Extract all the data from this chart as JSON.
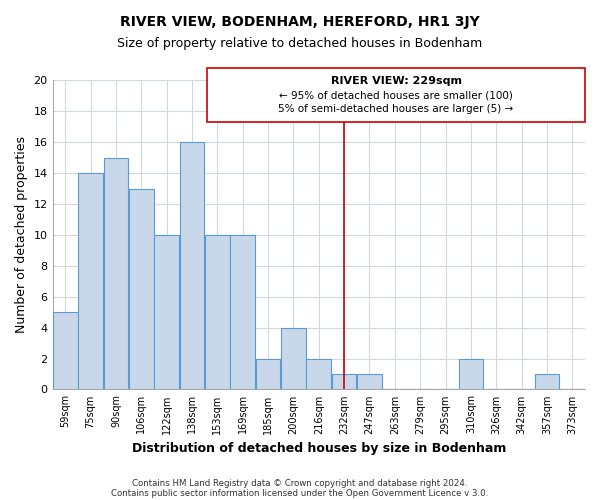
{
  "title": "RIVER VIEW, BODENHAM, HEREFORD, HR1 3JY",
  "subtitle": "Size of property relative to detached houses in Bodenham",
  "xlabel": "Distribution of detached houses by size in Bodenham",
  "ylabel": "Number of detached properties",
  "footer_lines": [
    "Contains HM Land Registry data © Crown copyright and database right 2024.",
    "Contains public sector information licensed under the Open Government Licence v 3.0."
  ],
  "bin_labels": [
    "59sqm",
    "75sqm",
    "90sqm",
    "106sqm",
    "122sqm",
    "138sqm",
    "153sqm",
    "169sqm",
    "185sqm",
    "200sqm",
    "216sqm",
    "232sqm",
    "247sqm",
    "263sqm",
    "279sqm",
    "295sqm",
    "310sqm",
    "326sqm",
    "342sqm",
    "357sqm",
    "373sqm"
  ],
  "bar_heights": [
    5,
    14,
    15,
    13,
    10,
    16,
    10,
    10,
    2,
    4,
    2,
    1,
    1,
    0,
    0,
    0,
    2,
    0,
    0,
    1,
    0
  ],
  "bar_color": "#c8d8ea",
  "bar_edge_color": "#5b9bd5",
  "ylim": [
    0,
    20
  ],
  "yticks": [
    0,
    2,
    4,
    6,
    8,
    10,
    12,
    14,
    16,
    18,
    20
  ],
  "vline_x_index": 11,
  "vline_color": "#cc0000",
  "annotation_title": "RIVER VIEW: 229sqm",
  "annotation_line1": "← 95% of detached houses are smaller (100)",
  "annotation_line2": "5% of semi-detached houses are larger (5) →",
  "annotation_box_color": "#ffffff",
  "annotation_box_edge": "#cc0000",
  "background_color": "#ffffff",
  "grid_color": "#d0d8e0"
}
